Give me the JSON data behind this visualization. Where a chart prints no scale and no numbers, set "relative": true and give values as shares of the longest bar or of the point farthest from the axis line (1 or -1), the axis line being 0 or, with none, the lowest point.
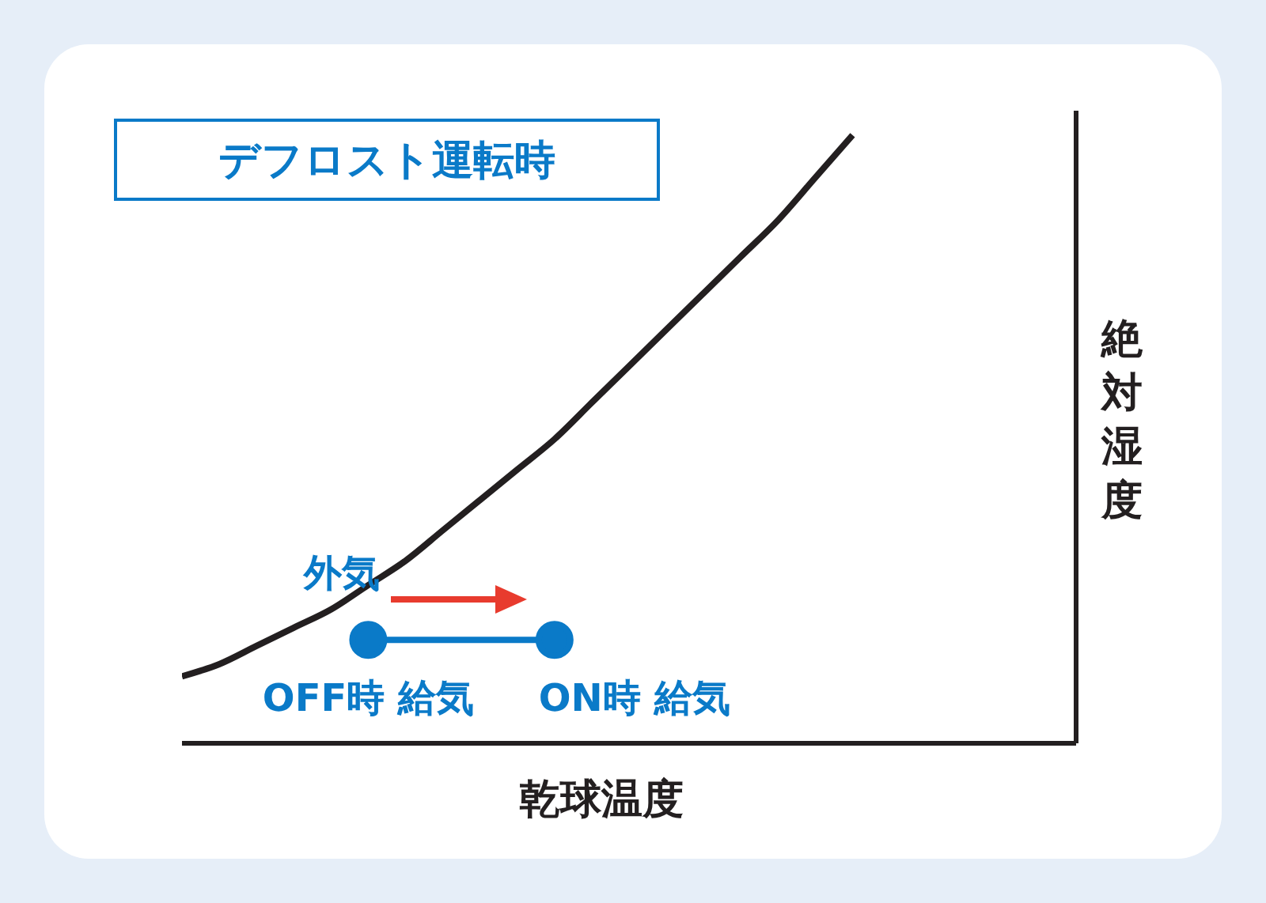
{
  "chart_data": {
    "type": "line",
    "title": "デフロスト運転時",
    "xlabel": "乾球温度",
    "ylabel": "絶対湿度",
    "relative": true,
    "line_style": "solid",
    "categories": [
      null,
      null,
      null,
      null,
      null,
      null,
      null,
      null,
      null,
      null,
      null,
      null,
      null,
      null,
      null,
      null,
      null,
      null,
      null,
      null,
      null,
      null,
      null,
      null,
      null
    ],
    "series": [
      {
        "name": "外気",
        "color": "#231f20",
        "marker": "none",
        "values": [
          0.11,
          0.13,
          0.16,
          0.19,
          0.22,
          0.26,
          0.3,
          0.35,
          0.4,
          0.45,
          0.5,
          0.56,
          0.62,
          0.68,
          0.74,
          0.8,
          0.86,
          0.93,
          1,
          null,
          null,
          null,
          null,
          null,
          null
        ]
      },
      {
        "color": "#0a7ac8",
        "marker": "circle",
        "values": [
          null,
          null,
          null,
          null,
          null,
          0.17,
          null,
          null,
          null,
          null,
          0.17,
          null,
          null,
          null,
          null,
          null,
          null,
          null,
          null,
          null,
          null,
          null,
          null,
          null,
          null
        ]
      }
    ],
    "annotations": [
      "OFF時 給気",
      "ON時 給気"
    ]
  }
}
